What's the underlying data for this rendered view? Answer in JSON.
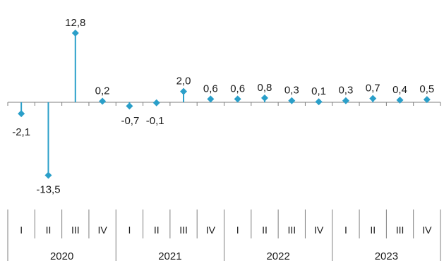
{
  "chart_data": {
    "type": "lollipop",
    "title": "",
    "xlabel": "",
    "ylabel": "",
    "ylim": [
      -15,
      14
    ],
    "grid": false,
    "legend": "none",
    "color": "#2a9fc9",
    "quarters": [
      "I",
      "II",
      "III",
      "IV"
    ],
    "years": [
      "2020",
      "2021",
      "2022",
      "2023"
    ],
    "series": [
      {
        "values": [
          -2.1,
          -13.5,
          12.8,
          0.2,
          -0.7,
          -0.1,
          2.0,
          0.6,
          0.6,
          0.8,
          0.3,
          0.1,
          0.3,
          0.7,
          0.4,
          0.5
        ],
        "labels": [
          "-2,1",
          "-13,5",
          "12,8",
          "0,2",
          "-0,7",
          "-0,1",
          "2,0",
          "0,6",
          "0,6",
          "0,8",
          "0,3",
          "0,1",
          "0,3",
          "0,7",
          "0,4",
          "0,5"
        ]
      }
    ]
  }
}
